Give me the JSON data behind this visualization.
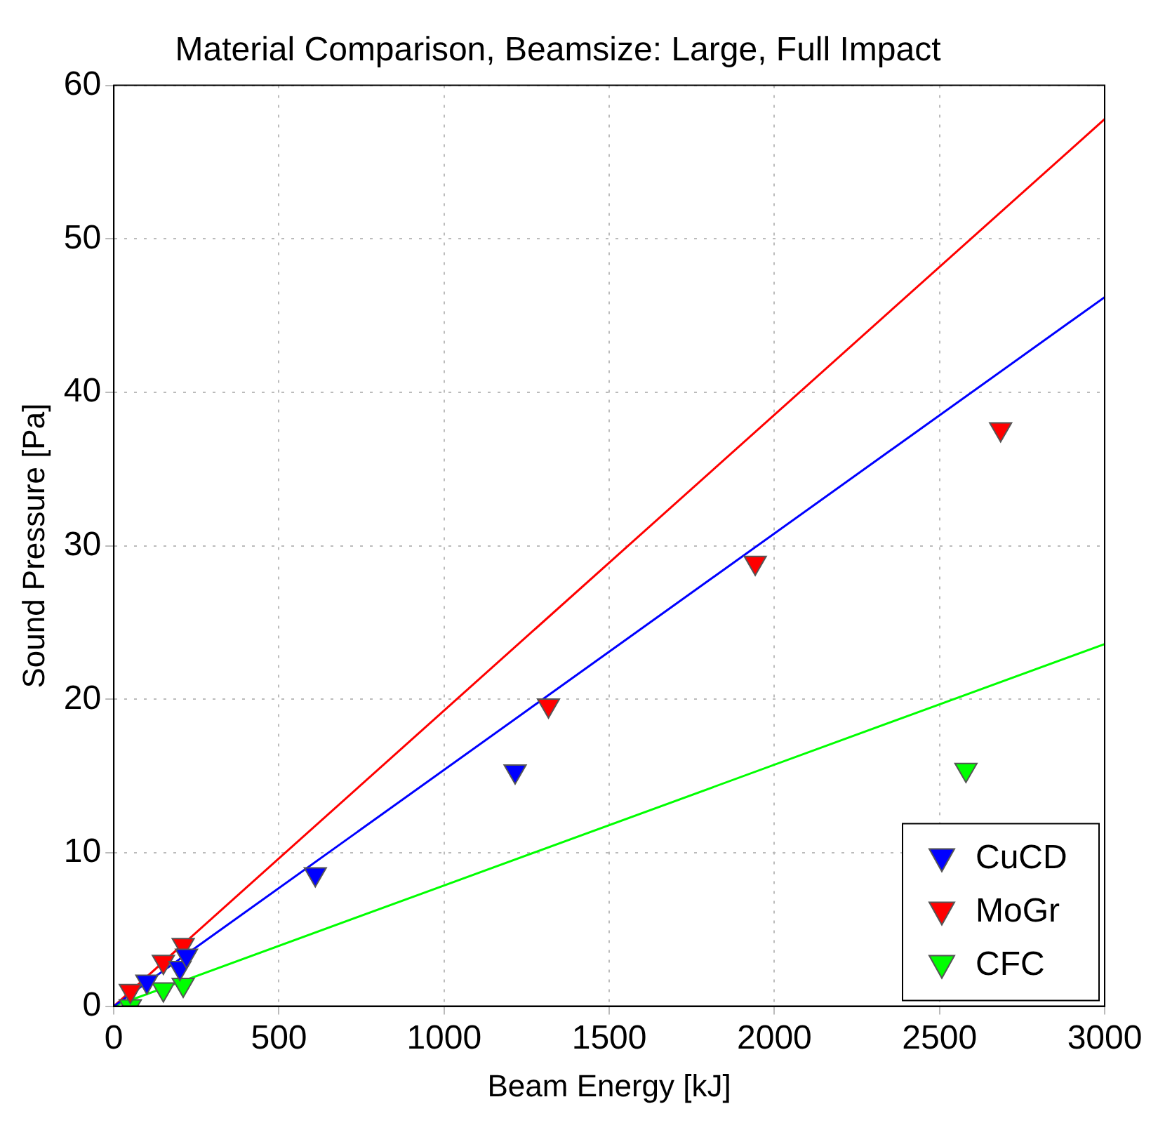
{
  "chart_data": {
    "type": "scatter",
    "title": "Material Comparison, Beamsize: Large, Full Impact",
    "xlabel": "Beam Energy [kJ]",
    "ylabel": "Sound Pressure [Pa]",
    "xlim": [
      0,
      3000
    ],
    "xticks": [
      0,
      500,
      1000,
      1500,
      2000,
      2500,
      3000
    ],
    "ylim": [
      0,
      60
    ],
    "yticks": [
      0,
      10,
      20,
      30,
      40,
      50,
      60
    ],
    "grid": true,
    "legend": "bottom right",
    "marker": "triangle",
    "series": [
      {
        "name": "CuCD",
        "color": "#0000ff",
        "x": [
          100,
          200,
          220,
          610,
          1215
        ],
        "values": [
          1.6,
          2.5,
          3.3,
          8.6,
          15.3
        ]
      },
      {
        "name": "MoGr",
        "color": "#ff0000",
        "x": [
          50,
          150,
          210,
          1316,
          1942,
          2685
        ],
        "values": [
          1.0,
          2.9,
          4.0,
          19.6,
          28.9,
          37.6
        ]
      },
      {
        "name": "CFC",
        "color": "#00ff00",
        "x": [
          50,
          150,
          210,
          2580
        ],
        "values": [
          0.0,
          1.1,
          1.4,
          15.4
        ]
      },
      {
        "type": "line",
        "color": "#0000ff",
        "x": [
          0,
          3000
        ],
        "values": [
          0,
          46.2
        ],
        "marker": "none",
        "line_style": "solid"
      },
      {
        "type": "line",
        "color": "#ff0000",
        "x": [
          0,
          3000
        ],
        "values": [
          0,
          57.8
        ],
        "marker": "none",
        "line_style": "solid"
      },
      {
        "type": "line",
        "color": "#00ff00",
        "x": [
          0,
          3000
        ],
        "values": [
          0,
          23.6
        ],
        "marker": "none",
        "line_style": "solid"
      }
    ]
  }
}
